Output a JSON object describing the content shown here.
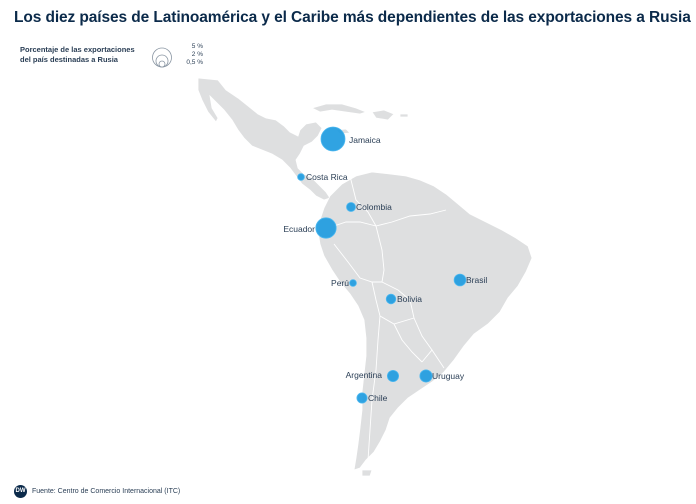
{
  "title": "Los diez países de Latinoamérica y el Caribe más dependientes de las exportaciones a Rusia",
  "legend": {
    "title_line1": "Porcentaje de las exportaciones",
    "title_line2": "del país destinadas a Rusia",
    "sizes": [
      {
        "label": "5 %",
        "value": 5
      },
      {
        "label": "2 %",
        "value": 2
      },
      {
        "label": "0,5 %",
        "value": 0.5
      }
    ]
  },
  "colors": {
    "land": "#dedfe0",
    "bubble": "#1e9be0",
    "bubble_stroke": "#4cb8f0",
    "text": "#2a3e55",
    "title": "#0b2a4a"
  },
  "countries": [
    {
      "name": "Jamaica",
      "share": 5.0
    },
    {
      "name": "Costa Rica",
      "share": 0.4
    },
    {
      "name": "Colombia",
      "share": 0.7
    },
    {
      "name": "Ecuador",
      "share": 3.6
    },
    {
      "name": "Perú",
      "share": 0.4
    },
    {
      "name": "Bolivia",
      "share": 0.8
    },
    {
      "name": "Brasil",
      "share": 1.2
    },
    {
      "name": "Argentina",
      "share": 1.1
    },
    {
      "name": "Uruguay",
      "share": 1.3
    },
    {
      "name": "Chile",
      "share": 0.9
    }
  ],
  "footer": {
    "logo_text": "DW",
    "source": "Fuente: Centro de Comercio Internacional (ITC)"
  }
}
